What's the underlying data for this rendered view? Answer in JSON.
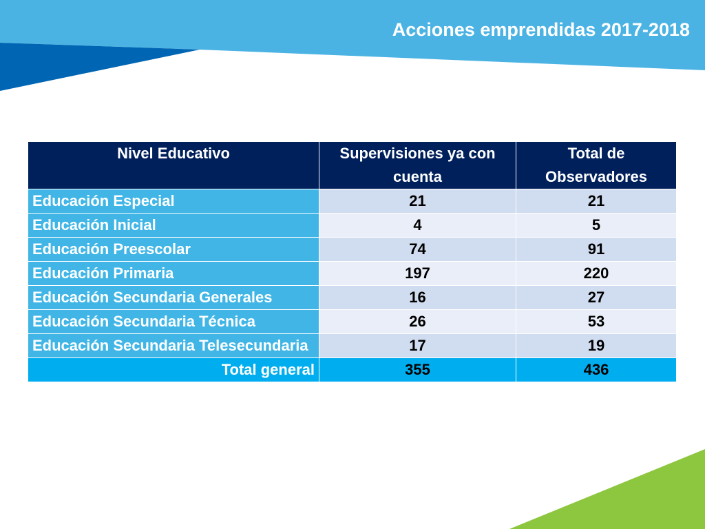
{
  "slide": {
    "title": "Acciones emprendidas 2017-2018"
  },
  "colors": {
    "header_band": "#4bb3e3",
    "dark_blue_wedge": "#0066b3",
    "green_wedge": "#8dc63f",
    "table_header": "#00205b",
    "row_label": "#41b6e6",
    "total_row": "#00aeef"
  },
  "table": {
    "headers": [
      "Nivel Educativo",
      "Supervisiones ya con cuenta",
      "Total de Observadores"
    ],
    "rows": [
      {
        "nivel": "Educación Especial",
        "supervisiones": "21",
        "observadores": "21"
      },
      {
        "nivel": "Educación Inicial",
        "supervisiones": "4",
        "observadores": "5"
      },
      {
        "nivel": "Educación Preescolar",
        "supervisiones": "74",
        "observadores": "91"
      },
      {
        "nivel": "Educación Primaria",
        "supervisiones": "197",
        "observadores": "220"
      },
      {
        "nivel": "Educación Secundaria Generales",
        "supervisiones": "16",
        "observadores": "27"
      },
      {
        "nivel": "Educación Secundaria Técnica",
        "supervisiones": "26",
        "observadores": "53"
      },
      {
        "nivel": "Educación Secundaria Telesecundaria",
        "supervisiones": "17",
        "observadores": "19"
      }
    ],
    "total": {
      "nivel": "Total general",
      "supervisiones": "355",
      "observadores": "436"
    }
  }
}
